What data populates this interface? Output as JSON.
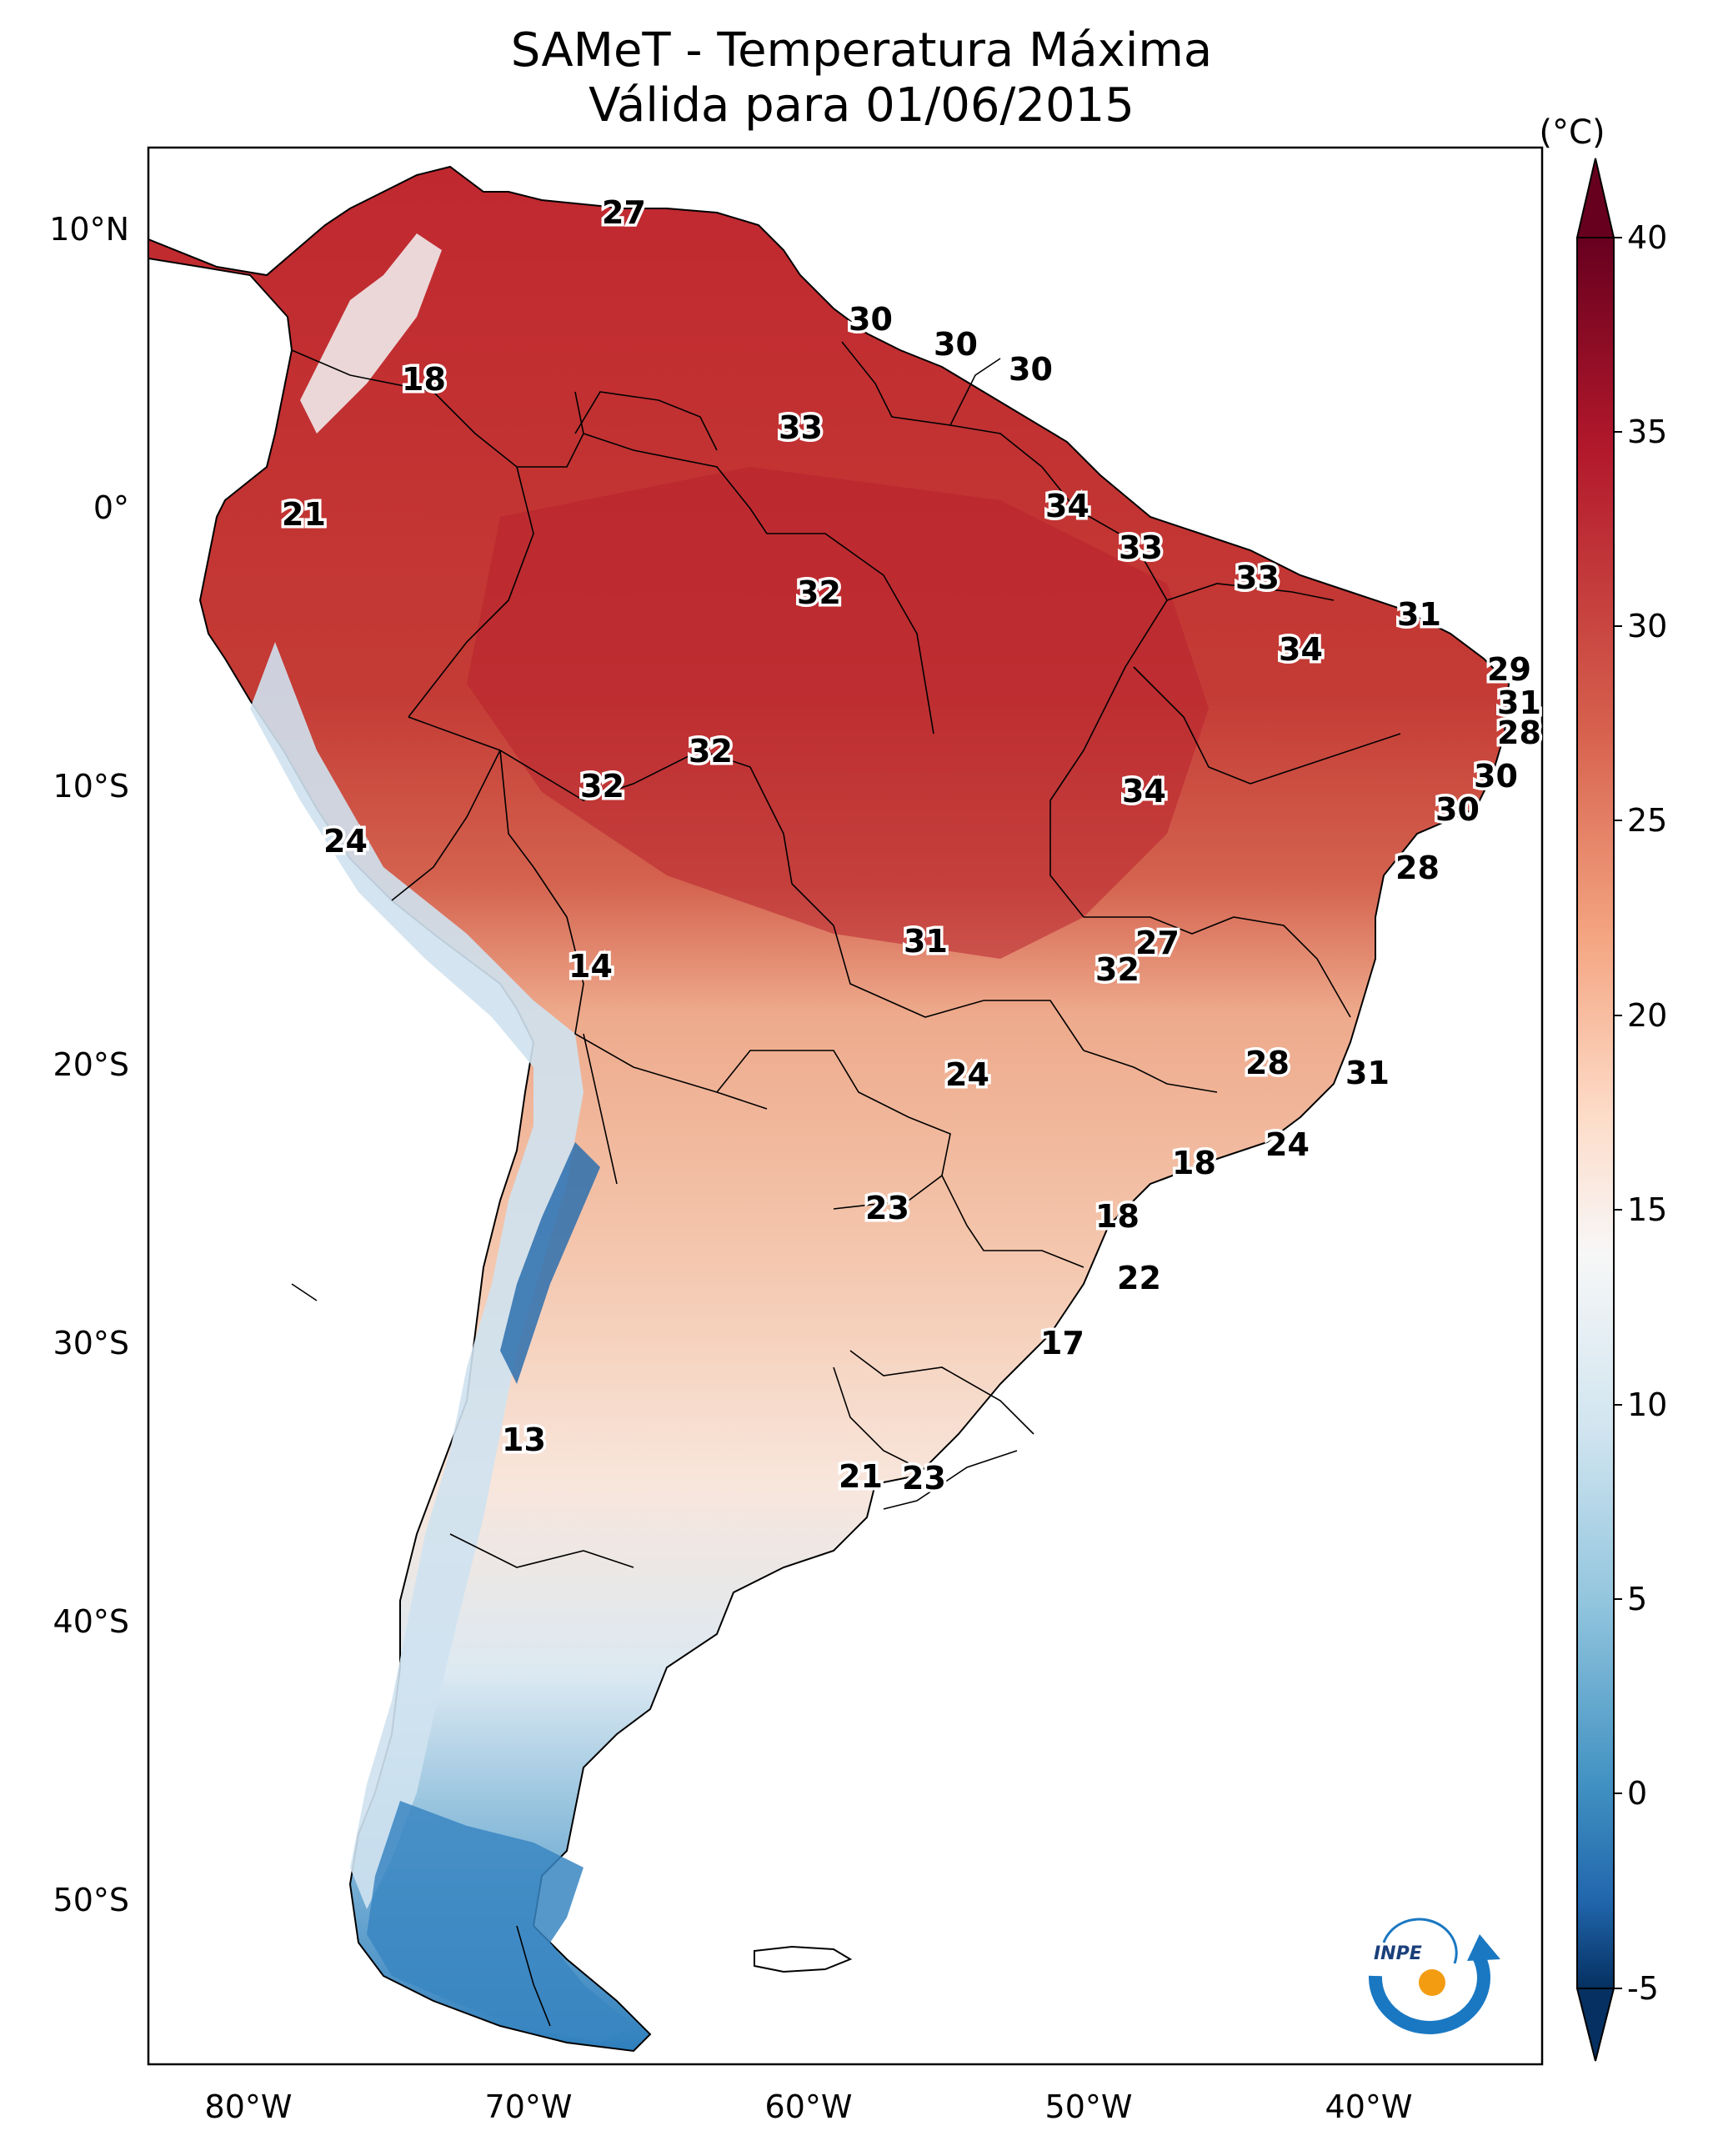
{
  "title": {
    "line1": "SAMeT - Temperatura Máxima",
    "line2": "Válida para 01/06/2015"
  },
  "colorbar": {
    "unit": "(°C)",
    "ticks": [
      "40",
      "35",
      "30",
      "25",
      "20",
      "15",
      "10",
      "5",
      "0",
      "-5"
    ],
    "range": [
      -5,
      40
    ],
    "extend": "both",
    "colormap": "red-white-blue diverging (RdBu_r)",
    "colors": {
      "max": "#67001f",
      "warm": "#d6604d",
      "mid": "#f7f7f7",
      "cool": "#4393c3",
      "min": "#053061"
    }
  },
  "axes": {
    "lat_labels": [
      "10°N",
      "0°",
      "10°S",
      "20°S",
      "30°S",
      "40°S",
      "50°S"
    ],
    "lon_labels": [
      "80°W",
      "70°W",
      "60°W",
      "50°W",
      "40°W"
    ]
  },
  "station_labels": [
    "27",
    "18",
    "21",
    "30",
    "30",
    "30",
    "33",
    "34",
    "33",
    "33",
    "32",
    "31",
    "34",
    "29",
    "31",
    "28",
    "32",
    "32",
    "30",
    "24",
    "34",
    "30",
    "28",
    "14",
    "31",
    "27",
    "32",
    "24",
    "28",
    "31",
    "23",
    "18",
    "24",
    "18",
    "22",
    "17",
    "13",
    "21",
    "23"
  ],
  "logo": {
    "text": "INPE"
  },
  "legend_icon": "inpe-logo-icon"
}
